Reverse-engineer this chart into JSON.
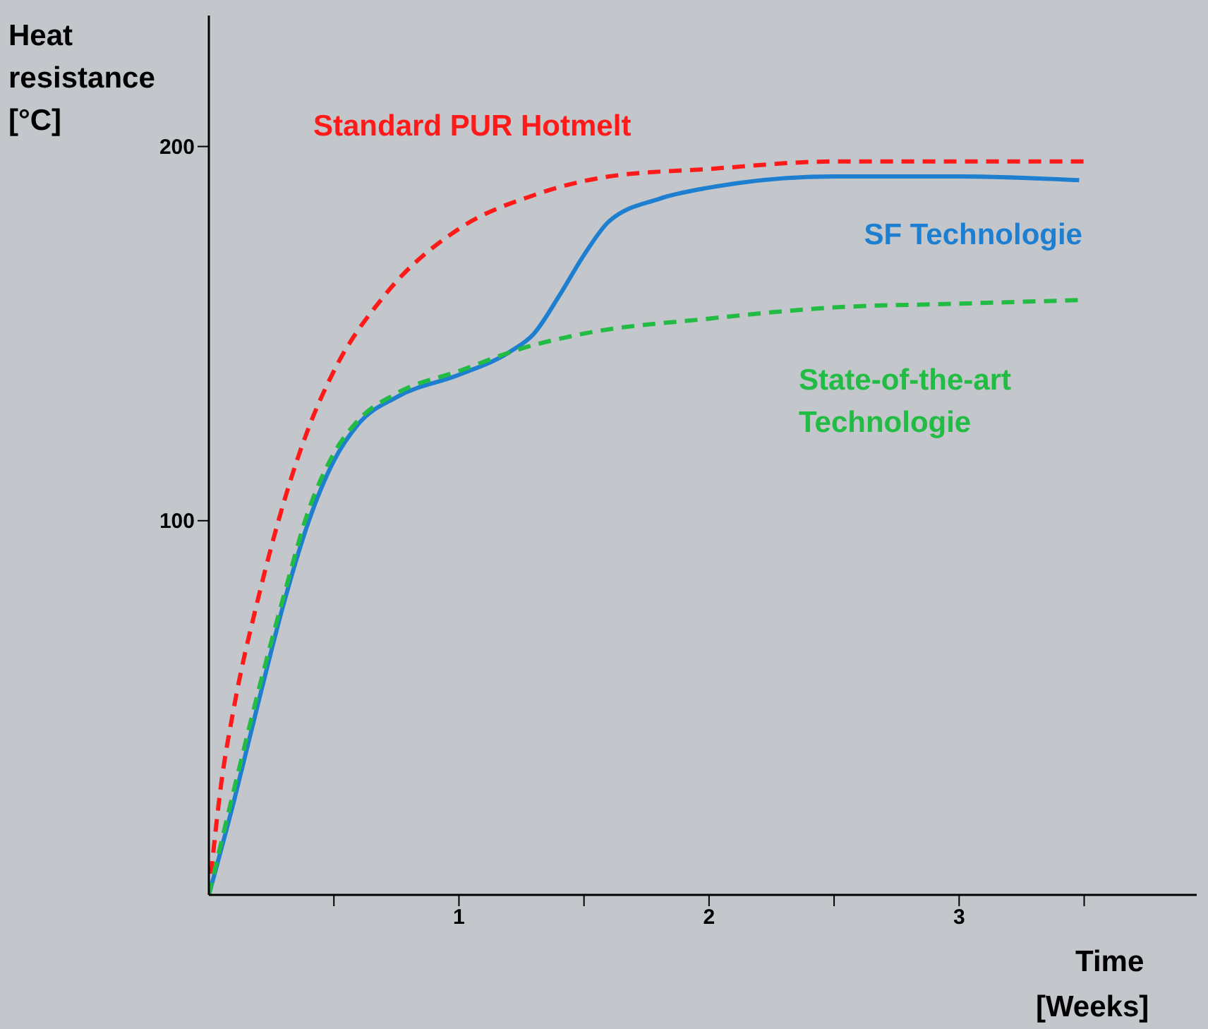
{
  "chart_data": {
    "type": "line",
    "ylabel": "Heat resistance [°C]",
    "xlabel": "Time [Weeks]",
    "xlim": [
      0,
      3.95
    ],
    "ylim": [
      0,
      235
    ],
    "xticks": [
      {
        "value": 0.5,
        "label": null
      },
      1,
      {
        "value": 1.5,
        "label": null
      },
      2,
      {
        "value": 2.5,
        "label": null
      },
      3,
      {
        "value": 3.5,
        "label": null
      }
    ],
    "yticks": [
      100,
      200
    ],
    "grid": false,
    "legend": false,
    "marker": "none",
    "series": [
      {
        "name": "Standard PUR Hotmelt",
        "color": "#ff1a1a",
        "line_style": "dashed",
        "x": [
          0,
          0.05,
          0.1,
          0.2,
          0.3,
          0.4,
          0.5,
          0.7,
          1,
          1.3,
          1.6,
          2,
          2.5,
          3,
          3.5
        ],
        "values": [
          0,
          30,
          50,
          80,
          105,
          125,
          140,
          160,
          178,
          187,
          192,
          194,
          196,
          196,
          196
        ]
      },
      {
        "name": "SF Technologie",
        "color": "#1e7fd0",
        "line_style": "solid",
        "x": [
          0,
          0.1,
          0.2,
          0.3,
          0.4,
          0.5,
          0.6,
          0.75,
          1,
          1.2,
          1.3,
          1.4,
          1.5,
          1.6,
          1.8,
          2,
          2.5,
          3,
          3.48
        ],
        "values": [
          0,
          25,
          52,
          78,
          100,
          116,
          126,
          133,
          139,
          145,
          150,
          160,
          171,
          180,
          186,
          189,
          192,
          192,
          191
        ]
      },
      {
        "name": "State-of-the-art Technologie",
        "color": "#22bb44",
        "line_style": "dashed",
        "x": [
          0,
          0.1,
          0.2,
          0.3,
          0.4,
          0.5,
          0.6,
          0.75,
          1,
          1.25,
          1.5,
          2,
          2.5,
          3,
          3.5
        ],
        "values": [
          0,
          28,
          55,
          80,
          103,
          118,
          127,
          134,
          140,
          146,
          150,
          154,
          157,
          158,
          159
        ]
      }
    ]
  }
}
